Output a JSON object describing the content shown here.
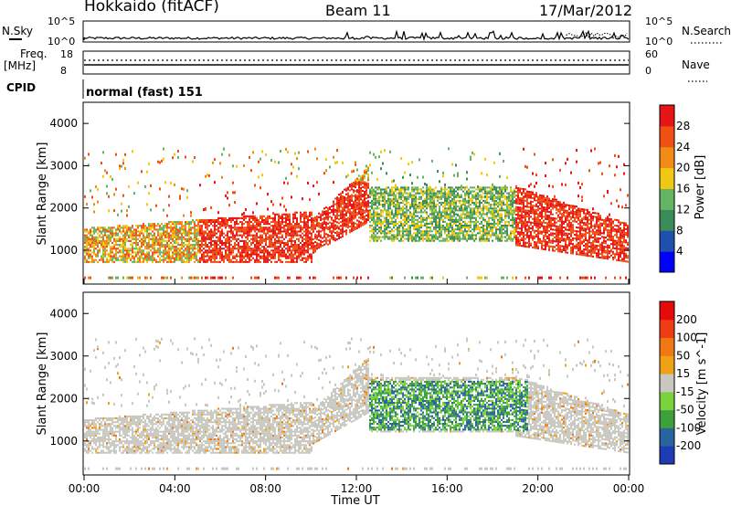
{
  "header": {
    "radar": "Hokkaido (fitACF)",
    "beam": "Beam 11",
    "date": "17/Mar/2012"
  },
  "top_panels": {
    "nsky_label": "N.Sky",
    "nsky_ticks": [
      "10^5",
      "10^0"
    ],
    "nsearch_label": "N.Search",
    "nsearch_ticks": [
      "10^5",
      "10^0"
    ],
    "freq_label": "Freq.",
    "freq_unit": "[MHz]",
    "freq_ticks": [
      "18",
      "8"
    ],
    "nave_label": "Nave",
    "nave_ticks": [
      "60",
      "0"
    ],
    "cpid_label": "CPID",
    "cpid_value": "normal (fast) 151"
  },
  "chart_data": [
    {
      "type": "heatmap",
      "panel": "power",
      "ylabel": "Slant Range [km]",
      "y_ticks": [
        1000,
        2000,
        3000,
        4000
      ],
      "colorbar_label": "Power [dB]",
      "colorbar_ticks": [
        "28",
        "24",
        "20",
        "16",
        "12",
        "8",
        "4"
      ],
      "colors": [
        "#0000ff",
        "#1f4faf",
        "#3c8c5a",
        "#64b464",
        "#f0c814",
        "#f08c14",
        "#f05014",
        "#e61414"
      ]
    },
    {
      "type": "heatmap",
      "panel": "velocity",
      "ylabel": "Slant Range [km]",
      "y_ticks": [
        1000,
        2000,
        3000,
        4000
      ],
      "colorbar_label": "Velocity [m s^-1]",
      "colorbar_ticks": [
        "200",
        "100",
        "50",
        "15",
        "-15",
        "-50",
        "-100",
        "-200"
      ],
      "colors": [
        "#1e3cb4",
        "#2864a0",
        "#3ca03c",
        "#7ad23c",
        "#c8c8c0",
        "#f0a014",
        "#f07814",
        "#f03c14",
        "#e60a0a"
      ]
    }
  ],
  "x_axis": {
    "label": "Time UT",
    "ticks": [
      "00:00",
      "04:00",
      "08:00",
      "12:00",
      "16:00",
      "20:00",
      "00:00"
    ]
  }
}
